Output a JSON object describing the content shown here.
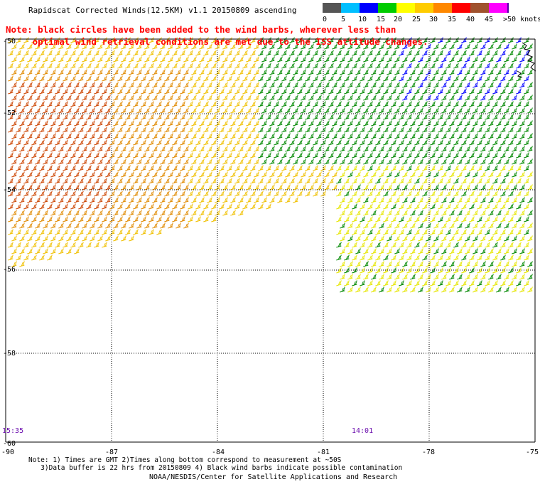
{
  "title": "Rapidscat Corrected Winds(12.5KM) v1.1 20150809 ascending",
  "note_line1": "Note: black circles have been added to the wind barbs, wherever less than",
  "note_line2": "     optimal wind retrieval conditions are met due to the ISS attitude changes.",
  "scale": {
    "labels": [
      "0",
      "5",
      "10",
      "15",
      "20",
      "25",
      "30",
      "35",
      "40",
      "45",
      ">50 knots"
    ],
    "colors": [
      "#555555",
      "#00bfff",
      "#0000ff",
      "#00cc00",
      "#ffff00",
      "#ffcc00",
      "#ff8800",
      "#ff0000",
      "#a0522d",
      "#ff00ff",
      "#5500aa"
    ]
  },
  "map": {
    "lat_labels": [
      "-50",
      "-52",
      "-54",
      "-56",
      "-58",
      "-60"
    ],
    "lon_labels": [
      "-90",
      "-87",
      "-84",
      "-81",
      "-78",
      "-75"
    ]
  },
  "times": {
    "left": "15:35",
    "right": "14:01"
  },
  "footnote_line1": "Note: 1) Times are GMT 2)Times along bottom correspond to measurement at ~50S",
  "footnote_line2": "   3)Data buffer is 22 hrs from 20150809 4) Black wind barbs indicate possible contamination",
  "credit": "NOAA/NESDIS/Center for Satellite Applications and Research"
}
